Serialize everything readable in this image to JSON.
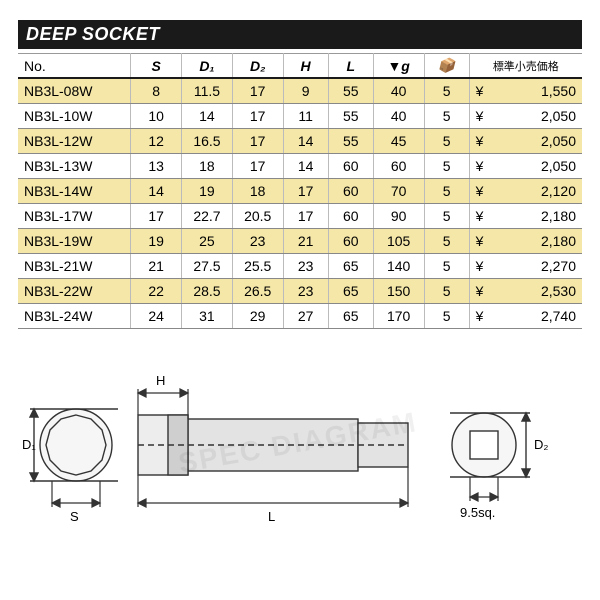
{
  "title": "DEEP SOCKET",
  "columns": [
    "No.",
    "S",
    "D₁",
    "D₂",
    "H",
    "L",
    "▼g",
    "📦",
    "標準小売価格"
  ],
  "rows": [
    [
      "NB3L-08W",
      "8",
      "11.5",
      "17",
      "9",
      "55",
      "40",
      "5",
      "1,550"
    ],
    [
      "NB3L-10W",
      "10",
      "14",
      "17",
      "11",
      "55",
      "40",
      "5",
      "2,050"
    ],
    [
      "NB3L-12W",
      "12",
      "16.5",
      "17",
      "14",
      "55",
      "45",
      "5",
      "2,050"
    ],
    [
      "NB3L-13W",
      "13",
      "18",
      "17",
      "14",
      "60",
      "60",
      "5",
      "2,050"
    ],
    [
      "NB3L-14W",
      "14",
      "19",
      "18",
      "17",
      "60",
      "70",
      "5",
      "2,120"
    ],
    [
      "NB3L-17W",
      "17",
      "22.7",
      "20.5",
      "17",
      "60",
      "90",
      "5",
      "2,180"
    ],
    [
      "NB3L-19W",
      "19",
      "25",
      "23",
      "21",
      "60",
      "105",
      "5",
      "2,180"
    ],
    [
      "NB3L-21W",
      "21",
      "27.5",
      "25.5",
      "23",
      "65",
      "140",
      "5",
      "2,270"
    ],
    [
      "NB3L-22W",
      "22",
      "28.5",
      "26.5",
      "23",
      "65",
      "150",
      "5",
      "2,530"
    ],
    [
      "NB3L-24W",
      "24",
      "31",
      "29",
      "27",
      "65",
      "170",
      "5",
      "2,740"
    ]
  ],
  "currency": "¥",
  "col_widths": [
    "20%",
    "9%",
    "9%",
    "9%",
    "8%",
    "8%",
    "9%",
    "8%",
    "20%"
  ],
  "diagram": {
    "labels": {
      "S": "S",
      "D1": "D₁",
      "D2": "D₂",
      "H": "H",
      "L": "L",
      "drive": "9.5sq."
    },
    "colors": {
      "stroke": "#333",
      "fill": "#f6f6f6",
      "body": "#e3e3e3"
    }
  },
  "header_styles": {
    "title_bg": "#1a1a1a",
    "title_fg": "#ffffff",
    "row_odd": "#f5e7a8",
    "row_even": "#ffffff",
    "border": "#888"
  }
}
